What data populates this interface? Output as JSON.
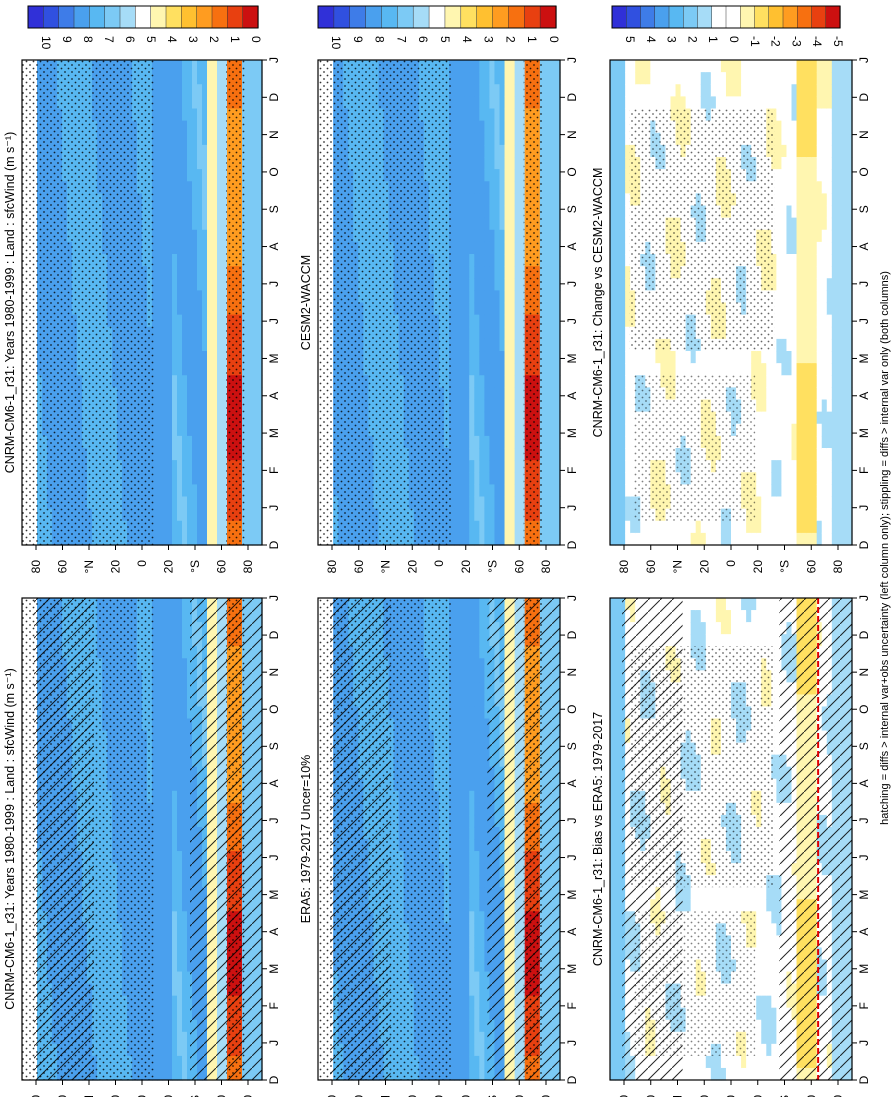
{
  "figure": {
    "footnote": "hatching = diffs > internal var+obs uncertainty (left column only); stippling = diffs > internal var only (both columns)",
    "month_labels": [
      "D",
      "J",
      "F",
      "M",
      "A",
      "M",
      "J",
      "J",
      "A",
      "S",
      "O",
      "N",
      "D",
      "J"
    ],
    "lat_labels": [
      "80",
      "60",
      "°N",
      "20",
      "0",
      "20",
      "°S",
      "60",
      "80"
    ]
  },
  "colors": {
    "field_scale": [
      "#3030d8",
      "#3050e0",
      "#3e7ce8",
      "#4aa0ee",
      "#58b8f2",
      "#7ccaf5",
      "#a6dcf7",
      "#ffffff",
      "#fff6b0",
      "#ffe060",
      "#ffc030",
      "#ff9c20",
      "#f77010",
      "#e84010",
      "#cc1010"
    ],
    "diff_scale": [
      "#3030d8",
      "#3050e0",
      "#3e7ce8",
      "#4aa0ee",
      "#58b8f2",
      "#7ccaf5",
      "#a6dcf7",
      "#ffffff",
      "#ffffff",
      "#fff6b0",
      "#ffe060",
      "#ffc030",
      "#ff9c20",
      "#f77010",
      "#e84010",
      "#cc1010"
    ]
  },
  "colorbars": {
    "field": [
      "10",
      "9",
      "8",
      "7",
      "6",
      "5",
      "4",
      "3",
      "2",
      "1",
      "0"
    ],
    "diff": [
      "5",
      "4",
      "3",
      "2",
      "1",
      "0",
      "-1",
      "-2",
      "-3",
      "-4",
      "-5"
    ]
  },
  "chart_data": [
    {
      "panel": "left-top",
      "type": "heatmap",
      "title": "CNRM-CM6-1_r31: Years 1980-1999 : Land : sfcWind (m s⁻¹)",
      "x": "month",
      "y": "latitude",
      "zlim": [
        0,
        10
      ],
      "units": "m s-1",
      "hatching": true,
      "stippling": true
    },
    {
      "panel": "left-middle",
      "type": "heatmap",
      "title": "ERA5: 1979-2017 Uncer=10%",
      "x": "month",
      "y": "latitude",
      "zlim": [
        0,
        10
      ],
      "hatching": true,
      "stippling": true
    },
    {
      "panel": "left-bottom",
      "type": "heatmap",
      "title": "CNRM-CM6-1_r31: Bias vs ERA5: 1979-2017",
      "x": "month",
      "y": "latitude",
      "zlim": [
        -5,
        5
      ],
      "hatching": true,
      "stippling": true
    },
    {
      "panel": "right-top",
      "type": "heatmap",
      "title": "CNRM-CM6-1_r31: Years 1980-1999 : Land : sfcWind (m s⁻¹)",
      "x": "month",
      "y": "latitude",
      "zlim": [
        0,
        10
      ],
      "stippling": true
    },
    {
      "panel": "right-middle",
      "type": "heatmap",
      "title": "CESM2-WACCM",
      "x": "month",
      "y": "latitude",
      "zlim": [
        0,
        10
      ],
      "stippling": true
    },
    {
      "panel": "right-bottom",
      "type": "heatmap",
      "title": "CNRM-CM6-1_r31: Change vs CESM2-WACCM",
      "x": "month",
      "y": "latitude",
      "zlim": [
        -5,
        5
      ],
      "stippling": true
    }
  ]
}
